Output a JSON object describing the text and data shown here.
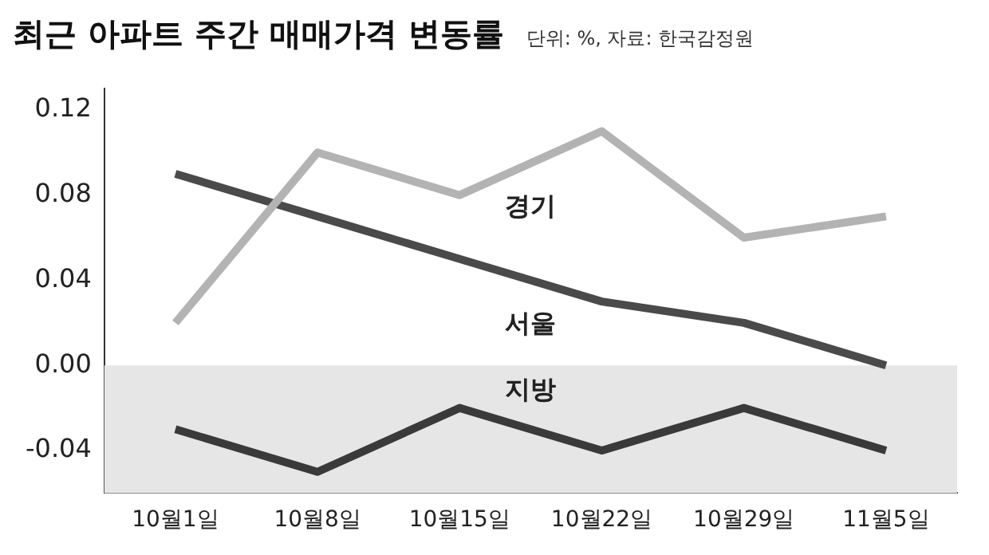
{
  "chart_data": {
    "type": "line",
    "title": "최근 아파트 주간 매매가격 변동률",
    "subtitle": "단위: %, 자료: 한국감정원",
    "categories": [
      "10월1일",
      "10월8일",
      "10월15일",
      "10월22일",
      "10월29일",
      "11월5일"
    ],
    "series": [
      {
        "name": "경기",
        "color": "#b3b3b3",
        "values": [
          0.02,
          0.1,
          0.08,
          0.11,
          0.06,
          0.07
        ]
      },
      {
        "name": "서울",
        "color": "#4a4a4a",
        "values": [
          0.09,
          0.07,
          0.05,
          0.03,
          0.02,
          0.0
        ]
      },
      {
        "name": "지방",
        "color": "#3a3a3a",
        "values": [
          -0.03,
          -0.05,
          -0.02,
          -0.04,
          -0.02,
          -0.04
        ]
      }
    ],
    "ylim": [
      -0.06,
      0.13
    ],
    "yticks": [
      {
        "value": 0.12,
        "label": "0.12"
      },
      {
        "value": 0.08,
        "label": "0.08"
      },
      {
        "value": 0.04,
        "label": "0.04"
      },
      {
        "value": 0,
        "label": "0.00"
      },
      {
        "value": -0.04,
        "label": "-0.04"
      }
    ],
    "bands": [
      {
        "axis": "y",
        "from": -0.06,
        "to": 0,
        "color": "#e6e6e6"
      }
    ],
    "grid": false,
    "legend": false,
    "marker": "none",
    "line_style": "solid"
  }
}
